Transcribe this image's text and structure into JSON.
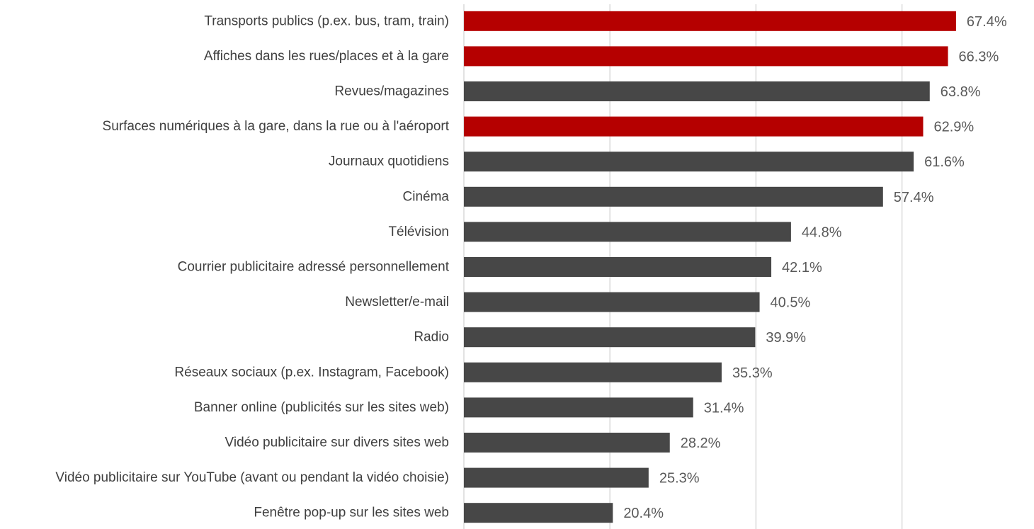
{
  "chart_data": {
    "type": "bar",
    "orientation": "horizontal",
    "categories": [
      "Transports publics (p.ex. bus, tram, train)",
      "Affiches dans les rues/places et à la gare",
      "Revues/magazines",
      "Surfaces numériques à la gare, dans la rue ou à l'aéroport",
      "Journaux quotidiens",
      "Cinéma",
      "Télévision",
      "Courrier publicitaire adressé personnellement",
      "Newsletter/e-mail",
      "Radio",
      "Réseaux sociaux (p.ex. Instagram, Facebook)",
      "Banner online (publicités sur les sites web)",
      "Vidéo publicitaire sur divers sites web",
      "Vidéo publicitaire sur YouTube (avant ou pendant la vidéo choisie)",
      "Fenêtre pop-up sur les sites web"
    ],
    "values": [
      67.4,
      66.3,
      63.8,
      62.9,
      61.6,
      57.4,
      44.8,
      42.1,
      40.5,
      39.9,
      35.3,
      31.4,
      28.2,
      25.3,
      20.4
    ],
    "value_labels": [
      "67.4%",
      "66.3%",
      "63.8%",
      "62.9%",
      "61.6%",
      "57.4%",
      "44.8%",
      "42.1%",
      "40.5%",
      "39.9%",
      "35.3%",
      "31.4%",
      "28.2%",
      "25.3%",
      "20.4%"
    ],
    "highlighted": [
      true,
      true,
      false,
      true,
      false,
      false,
      false,
      false,
      false,
      false,
      false,
      false,
      false,
      false,
      false
    ],
    "colors": {
      "highlight": "#b50000",
      "default": "#474747",
      "grid": "#d9d9d9"
    },
    "xlim": [
      0,
      80
    ],
    "gridlines": [
      0,
      20,
      40,
      60
    ],
    "grid": true,
    "title": "",
    "xlabel": "",
    "ylabel": ""
  }
}
